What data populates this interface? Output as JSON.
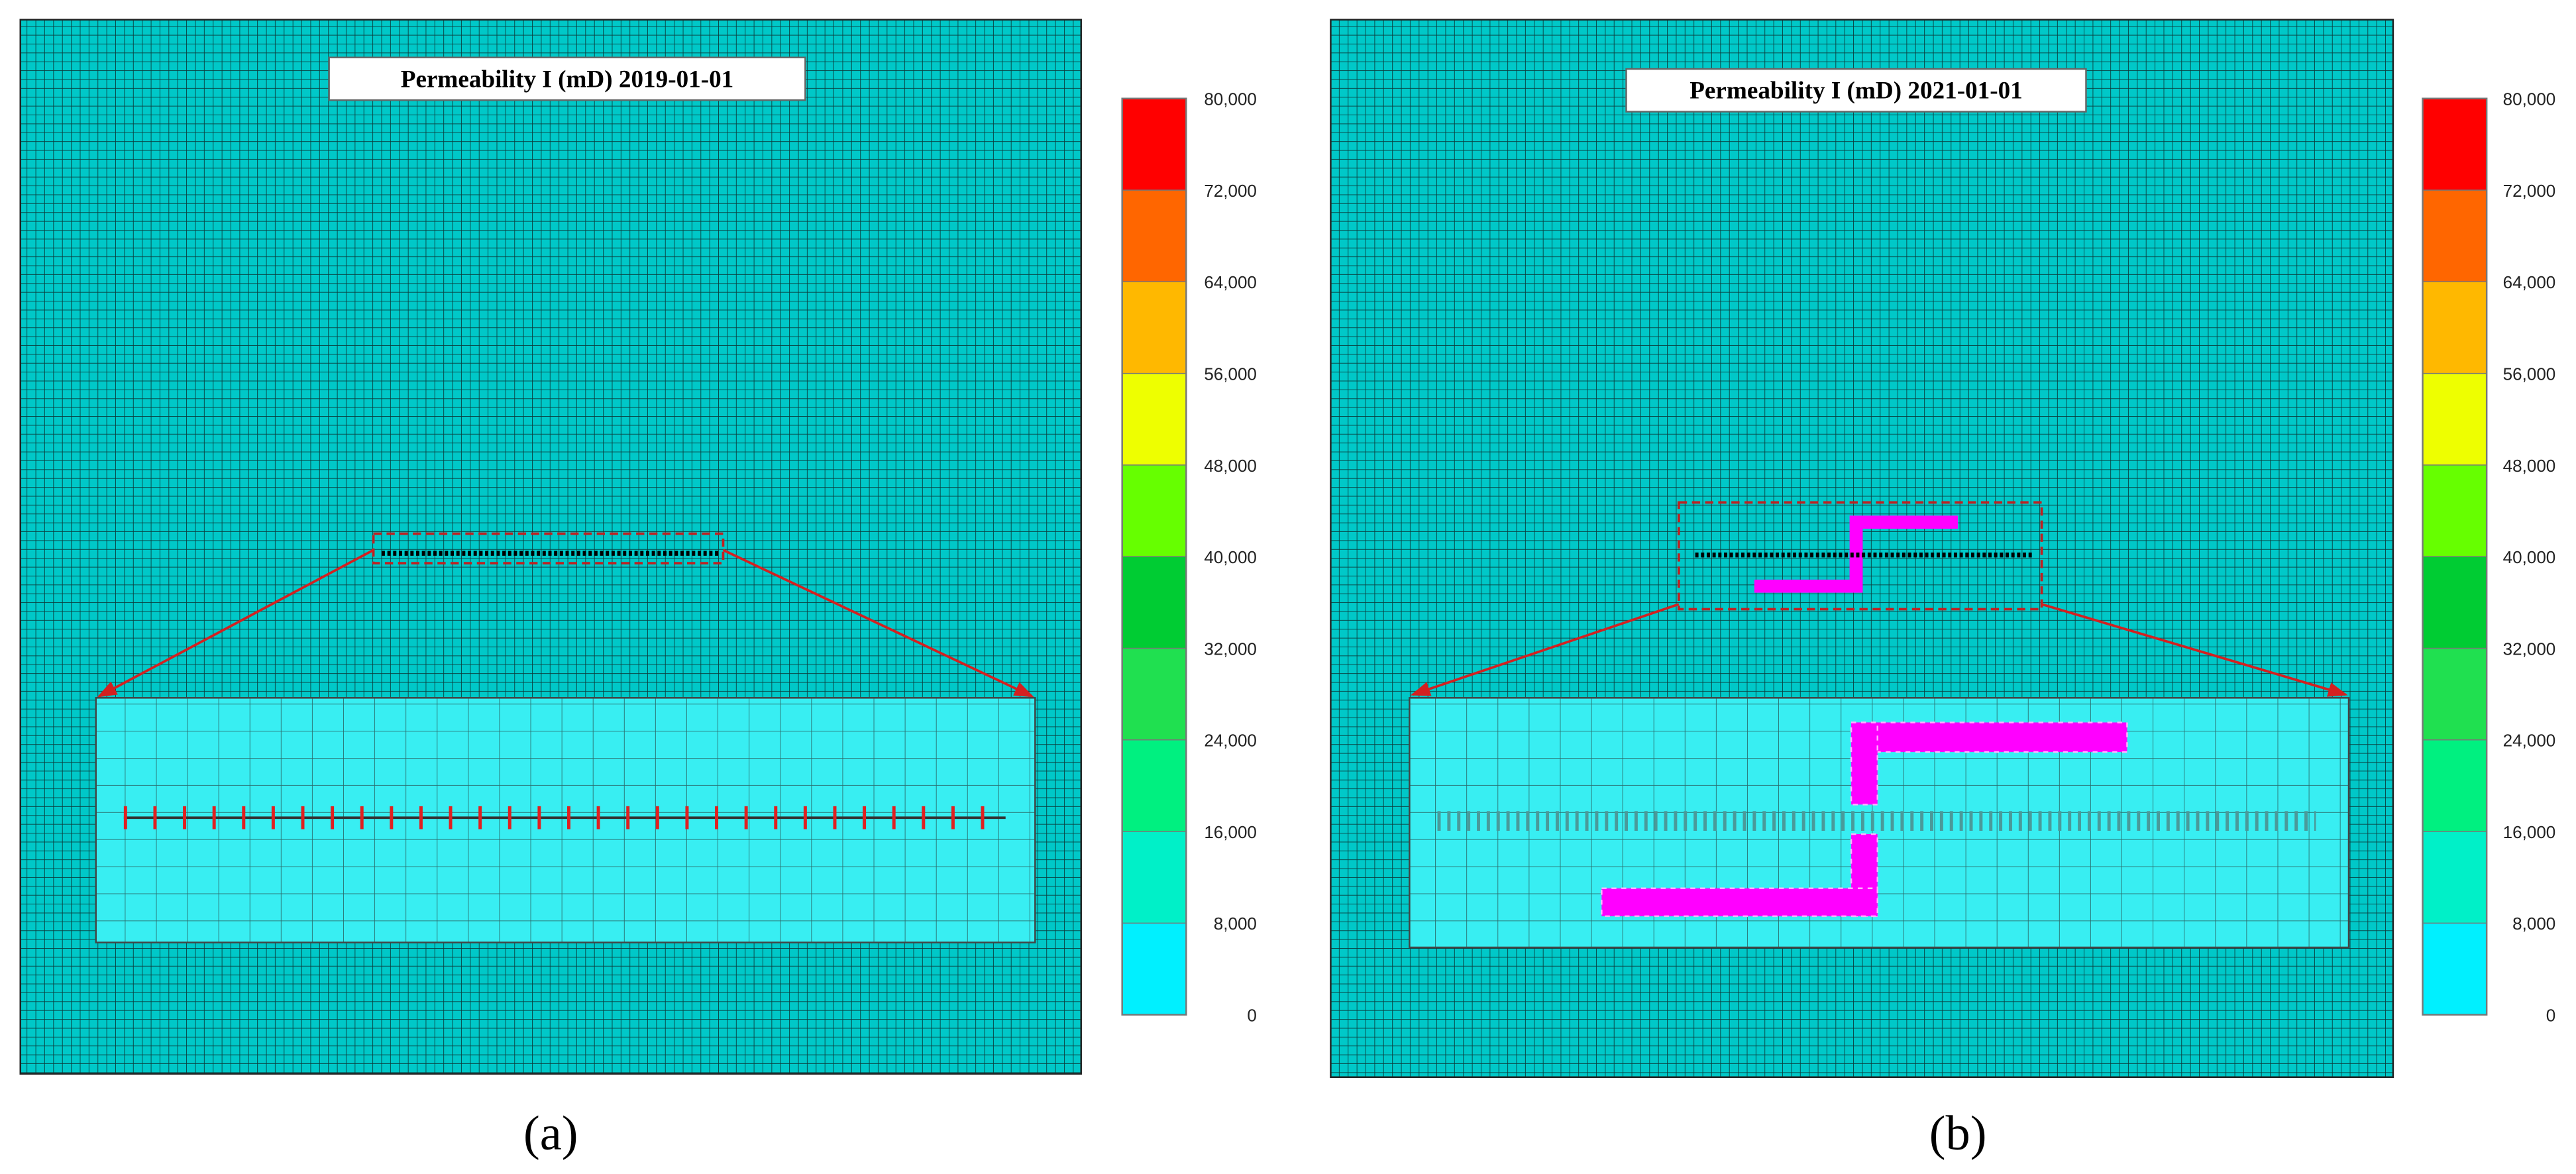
{
  "panels": [
    {
      "title": "Permeability I (mD)  2019-01-01",
      "colorbar": {
        "range": [
          0,
          80000
        ],
        "ticks": [
          0,
          {
            "value": 8000,
            "label": "8,000"
          },
          {
            "value": 16000,
            "label": "16,000"
          },
          {
            "value": 24000,
            "label": "24,000"
          },
          {
            "value": 32000,
            "label": "32,000"
          },
          {
            "value": 40000,
            "label": "40,000"
          },
          {
            "value": 48000,
            "label": "48,000"
          },
          {
            "value": 56000,
            "label": "56,000"
          },
          {
            "value": 64000,
            "label": "64,000"
          },
          {
            "value": 72000,
            "label": "72,000"
          },
          {
            "value": 80000,
            "label": "80,000"
          }
        ],
        "colors": [
          "#00f0ff",
          "#00f0c8",
          "#00f080",
          "#20e050",
          "#00cc33",
          "#66ff00",
          "#eeff00",
          "#ffb800",
          "#ff6600",
          "#ff0000"
        ]
      },
      "caption": "(a)"
    },
    {
      "title": "Permeability I (mD) 2021-01-01",
      "colorbar": {
        "range": [
          0,
          80000
        ],
        "ticks": [
          0,
          {
            "value": 8000,
            "label": "8,000"
          },
          {
            "value": 16000,
            "label": "16,000"
          },
          {
            "value": 24000,
            "label": "24,000"
          },
          {
            "value": 32000,
            "label": "32,000"
          },
          {
            "value": 40000,
            "label": "40,000"
          },
          {
            "value": 48000,
            "label": "48,000"
          },
          {
            "value": 56000,
            "label": "56,000"
          },
          {
            "value": 64000,
            "label": "64,000"
          },
          {
            "value": 72000,
            "label": "72,000"
          },
          {
            "value": 80000,
            "label": "80,000"
          }
        ],
        "colors": [
          "#00f0ff",
          "#00f0c8",
          "#00f080",
          "#20e050",
          "#00cc33",
          "#66ff00",
          "#eeff00",
          "#ffb800",
          "#ff6600",
          "#ff0000"
        ]
      },
      "caption": "(b)"
    }
  ]
}
